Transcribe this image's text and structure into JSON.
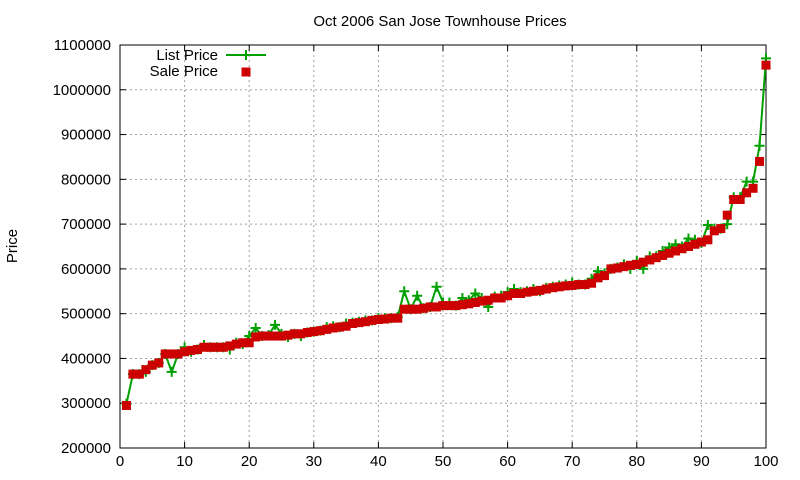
{
  "chart_data": {
    "type": "line",
    "title": "Oct 2006 San Jose Townhouse Prices",
    "xlabel": "",
    "ylabel": "Price",
    "xlim": [
      0,
      100
    ],
    "ylim": [
      200000,
      1100000
    ],
    "xticks": [
      0,
      10,
      20,
      30,
      40,
      50,
      60,
      70,
      80,
      90,
      100
    ],
    "yticks": [
      200000,
      300000,
      400000,
      500000,
      600000,
      700000,
      800000,
      900000,
      1000000,
      1100000
    ],
    "grid": true,
    "legend_position": "top-left",
    "x": [
      1,
      2,
      3,
      4,
      5,
      6,
      7,
      8,
      9,
      10,
      11,
      12,
      13,
      14,
      15,
      16,
      17,
      18,
      19,
      20,
      21,
      22,
      23,
      24,
      25,
      26,
      27,
      28,
      29,
      30,
      31,
      32,
      33,
      34,
      35,
      36,
      37,
      38,
      39,
      40,
      41,
      42,
      43,
      44,
      45,
      46,
      47,
      48,
      49,
      50,
      51,
      52,
      53,
      54,
      55,
      56,
      57,
      58,
      59,
      60,
      61,
      62,
      63,
      64,
      65,
      66,
      67,
      68,
      69,
      70,
      71,
      72,
      73,
      74,
      75,
      76,
      77,
      78,
      79,
      80,
      81,
      82,
      83,
      84,
      85,
      86,
      87,
      88,
      89,
      90,
      91,
      92,
      93,
      94,
      95,
      96,
      97,
      98,
      99,
      100
    ],
    "series": [
      {
        "name": "List Price",
        "color": "#00a000",
        "marker": "plus",
        "values": [
          299000,
          365000,
          365000,
          370000,
          385000,
          390000,
          410000,
          370000,
          410000,
          425000,
          415000,
          420000,
          430000,
          425000,
          425000,
          425000,
          420000,
          435000,
          432000,
          450000,
          468000,
          450000,
          452000,
          475000,
          455000,
          448000,
          455000,
          450000,
          458000,
          460000,
          462000,
          470000,
          472000,
          470000,
          478000,
          480000,
          482000,
          485000,
          485000,
          490000,
          490000,
          490000,
          493000,
          550000,
          510000,
          540000,
          512000,
          515000,
          560000,
          525000,
          525000,
          518000,
          535000,
          530000,
          545000,
          535000,
          515000,
          538000,
          540000,
          548000,
          555000,
          548000,
          550000,
          555000,
          550000,
          558000,
          560000,
          563000,
          565000,
          570000,
          565000,
          565000,
          578000,
          595000,
          590000,
          600000,
          603000,
          610000,
          600000,
          618000,
          600000,
          628000,
          628000,
          640000,
          648000,
          655000,
          650000,
          668000,
          665000,
          658000,
          698000,
          690000,
          690000,
          700000,
          760000,
          760000,
          795000,
          795000,
          875000,
          1070000
        ]
      },
      {
        "name": "Sale Price",
        "color": "#cc0000",
        "marker": "square",
        "values": [
          295000,
          365000,
          365000,
          375000,
          385000,
          390000,
          410000,
          410000,
          410000,
          415000,
          418000,
          420000,
          425000,
          425000,
          425000,
          425000,
          428000,
          432000,
          435000,
          435000,
          448000,
          450000,
          450000,
          450000,
          450000,
          452000,
          455000,
          455000,
          458000,
          460000,
          462000,
          465000,
          468000,
          470000,
          472000,
          478000,
          480000,
          482000,
          485000,
          487000,
          488000,
          490000,
          490000,
          510000,
          510000,
          510000,
          512000,
          515000,
          515000,
          518000,
          518000,
          518000,
          520000,
          522000,
          525000,
          528000,
          530000,
          535000,
          535000,
          540000,
          545000,
          545000,
          548000,
          550000,
          552000,
          555000,
          558000,
          560000,
          562000,
          563000,
          565000,
          565000,
          568000,
          580000,
          585000,
          600000,
          602000,
          605000,
          608000,
          610000,
          615000,
          620000,
          625000,
          630000,
          635000,
          640000,
          645000,
          650000,
          655000,
          660000,
          665000,
          685000,
          690000,
          720000,
          755000,
          755000,
          770000,
          780000,
          840000,
          1055000
        ]
      }
    ]
  }
}
